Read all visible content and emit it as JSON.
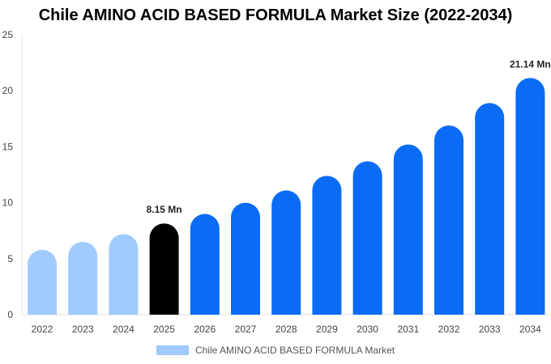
{
  "chart_data": {
    "type": "bar",
    "title": "Chile AMINO ACID BASED FORMULA Market Size (2022-2034)",
    "xlabel": "",
    "ylabel": "",
    "categories": [
      "2022",
      "2023",
      "2024",
      "2025",
      "2026",
      "2027",
      "2028",
      "2029",
      "2030",
      "2031",
      "2032",
      "2033",
      "2034"
    ],
    "series": [
      {
        "name": "Chile AMINO ACID BASED FORMULA Market",
        "values": [
          5.8,
          6.5,
          7.2,
          8.15,
          9.0,
          10.0,
          11.1,
          12.4,
          13.7,
          15.2,
          16.9,
          18.9,
          21.14
        ]
      }
    ],
    "data_labels": [
      {
        "category": "2025",
        "text": "8.15 Mn"
      },
      {
        "category": "2034",
        "text": "21.14 Mn"
      }
    ],
    "ylim": [
      0,
      25
    ],
    "yticks": [
      0,
      5,
      10,
      15,
      20,
      25
    ],
    "grid": false,
    "legend_position": "bottom",
    "colors": {
      "historical": "#a0cbff",
      "current": "#000000",
      "forecast": "#0a6cf5"
    },
    "color_groups": [
      "historical",
      "historical",
      "historical",
      "current",
      "forecast",
      "forecast",
      "forecast",
      "forecast",
      "forecast",
      "forecast",
      "forecast",
      "forecast",
      "forecast"
    ]
  }
}
